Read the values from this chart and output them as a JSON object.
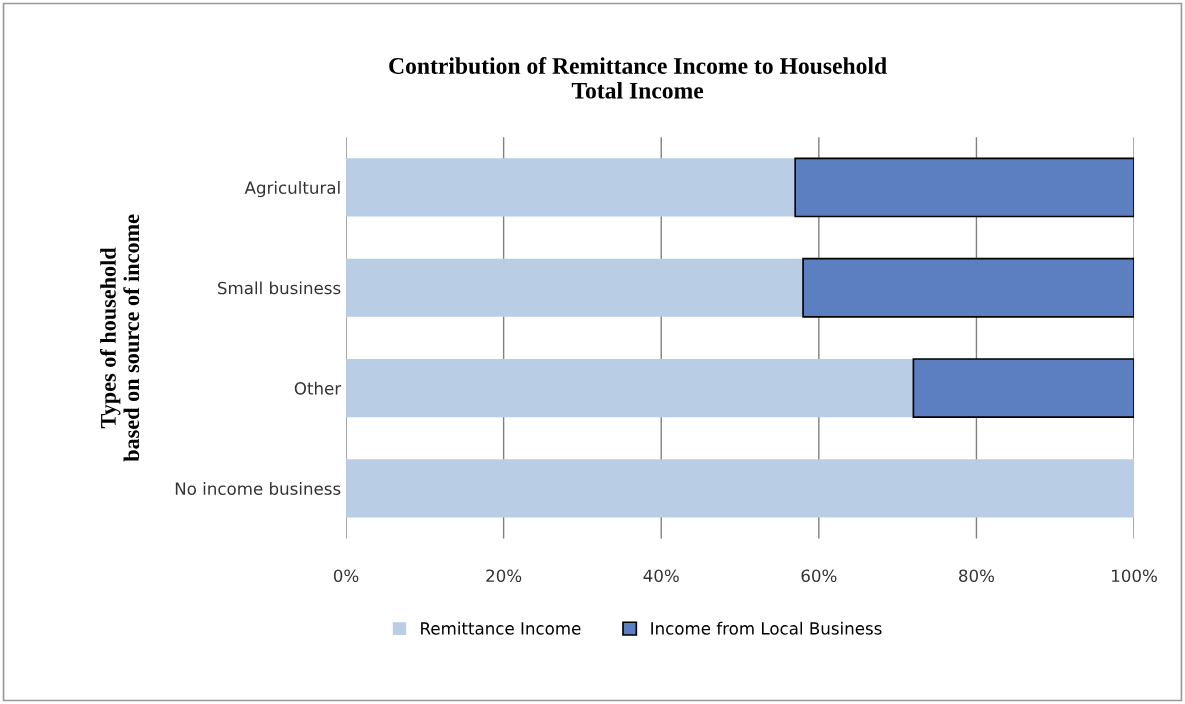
{
  "chart_data": {
    "type": "bar",
    "orientation": "horizontal",
    "stacked": true,
    "title": "Contribution of Remittance Income to Household\nTotal Income",
    "ylabel": "Types of household\nbased on source of income",
    "categories": [
      "Agricultural",
      "Small business",
      "Other",
      "No income business"
    ],
    "series": [
      {
        "name": "Remittance Income",
        "color": "#b9cde5",
        "values": [
          57,
          58,
          72,
          100
        ]
      },
      {
        "name": "Income from Local Business",
        "color": "#5b7fc0",
        "values": [
          43,
          42,
          28,
          0
        ]
      }
    ],
    "xlim": [
      0,
      100
    ],
    "xticks": [
      {
        "value": 0,
        "label": "0%"
      },
      {
        "value": 20,
        "label": "20%"
      },
      {
        "value": 40,
        "label": "40%"
      },
      {
        "value": 60,
        "label": "60%"
      },
      {
        "value": 80,
        "label": "80%"
      },
      {
        "value": 100,
        "label": "100%"
      }
    ],
    "grid": "x",
    "legend": "bottom"
  }
}
